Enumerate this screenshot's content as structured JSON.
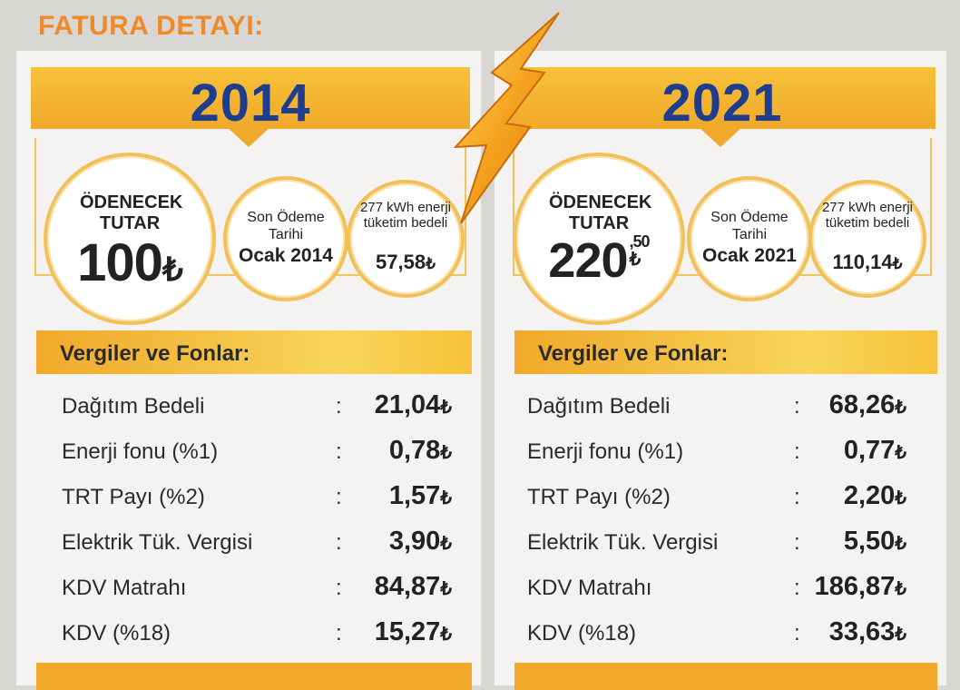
{
  "title": "FATURA DETAYI:",
  "lira": "₺",
  "colors": {
    "accent": "#ee8a2a",
    "year": "#1f3d8e",
    "bar": "#f0a92a"
  },
  "icons": {
    "bolt": "lightning-bolt-icon"
  },
  "left": {
    "year": "2014",
    "total_label": "ÖDENECEK TUTAR",
    "total_amount": "100",
    "due_label": "Son Ödeme Tarihi",
    "due_date": "Ocak 2014",
    "energy_label": "277 kWh enerji tüketim bedeli",
    "energy_amount": "57,58",
    "section_title": "Vergiler ve Fonlar:",
    "rows": [
      {
        "label": "Dağıtım Bedeli",
        "value": "21,04"
      },
      {
        "label": "Enerji fonu (%1)",
        "value": "0,78"
      },
      {
        "label": "TRT Payı (%2)",
        "value": "1,57"
      },
      {
        "label": "Elektrik Tük. Vergisi",
        "value": "3,90"
      },
      {
        "label": "KDV Matrahı",
        "value": "84,87"
      },
      {
        "label": "KDV (%18)",
        "value": "15,27"
      }
    ]
  },
  "right": {
    "year": "2021",
    "total_label": "ÖDENECEK TUTAR",
    "total_amount": "220",
    "total_cents": ",50",
    "due_label": "Son Ödeme Tarihi",
    "due_date": "Ocak 2021",
    "energy_label": "277 kWh enerji tüketim bedeli",
    "energy_amount": "110,14",
    "section_title": "Vergiler ve Fonlar:",
    "rows": [
      {
        "label": "Dağıtım Bedeli",
        "value": "68,26"
      },
      {
        "label": "Enerji fonu (%1)",
        "value": "0,77"
      },
      {
        "label": "TRT Payı (%2)",
        "value": "2,20"
      },
      {
        "label": "Elektrik Tük. Vergisi",
        "value": "5,50"
      },
      {
        "label": "KDV Matrahı",
        "value": "186,87"
      },
      {
        "label": "KDV (%18)",
        "value": "33,63"
      }
    ]
  }
}
